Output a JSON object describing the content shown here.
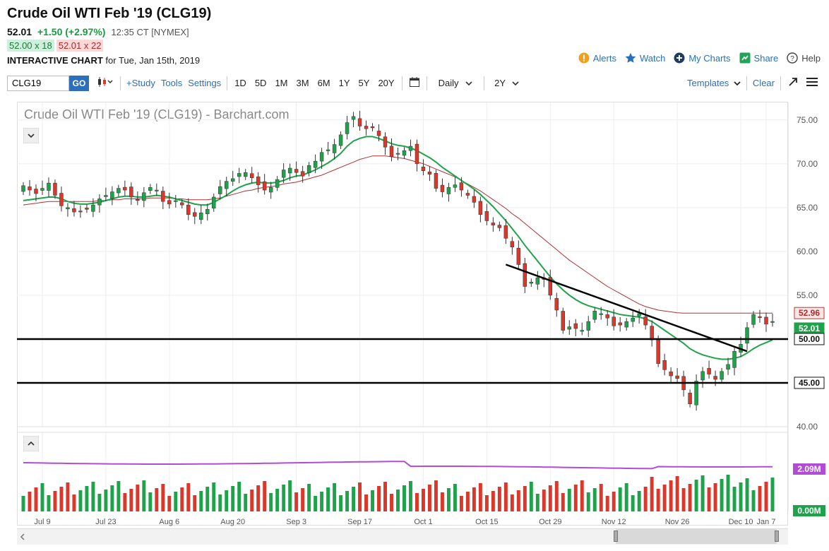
{
  "header": {
    "title": "Crude Oil WTI Feb '19 (CLG19)",
    "last": "52.01",
    "change": "+1.50 (+2.97%)",
    "time": "12:35 CT [NYMEX]",
    "bid": "52.00 x 18",
    "ask": "52.01 x 22",
    "chart_label": "INTERACTIVE CHART",
    "chart_date": "for Tue, Jan 15th, 2019"
  },
  "links": {
    "alerts": "Alerts",
    "watch": "Watch",
    "my_charts": "My Charts",
    "share": "Share",
    "help": "Help"
  },
  "toolbar": {
    "symbol_value": "CLG19",
    "go_label": "GO",
    "study": "+Study",
    "tools": "Tools",
    "settings": "Settings",
    "periods": [
      "1D",
      "5D",
      "1M",
      "3M",
      "6M",
      "1Y",
      "5Y",
      "20Y"
    ],
    "interval": "Daily",
    "range": "2Y",
    "templates": "Templates",
    "clear": "Clear"
  },
  "chart_data": {
    "type": "candlestick",
    "title": "Crude Oil WTI Feb '19 (CLG19) - Barchart.com",
    "ylim": [
      40,
      77
    ],
    "yticks": [
      "75.00",
      "70.00",
      "65.00",
      "60.00",
      "55.00",
      "50.00",
      "45.00",
      "40.00"
    ],
    "xticks": [
      "Jul 9",
      "Jul 23",
      "Aug 6",
      "Aug 20",
      "Sep 3",
      "Sep 17",
      "Oct 1",
      "Oct 15",
      "Oct 29",
      "Nov 12",
      "Nov 26",
      "Dec 10",
      "Jan 7"
    ],
    "price_tags": [
      "52.96",
      "52.01",
      "50.00",
      "45.00"
    ],
    "horizontal_levels": [
      50.0,
      45.0
    ],
    "trendline": {
      "from": [
        "Nov 14",
        58.5
      ],
      "to": [
        "Jan 10",
        48.6
      ]
    },
    "colors": {
      "up": "#1fa34a",
      "down": "#d9382a",
      "ma_fast": "#1fa34a",
      "ma_slow": "#b03030",
      "volume_ma": "#b24bd6"
    },
    "closes": [
      67.5,
      67.0,
      66.6,
      67.2,
      67.8,
      66.4,
      65.2,
      65.0,
      64.5,
      64.6,
      64.8,
      65.3,
      66.0,
      66.4,
      66.8,
      67.2,
      67.0,
      66.2,
      65.8,
      66.7,
      67.3,
      67.0,
      65.7,
      65.4,
      65.8,
      65.3,
      64.2,
      64.0,
      64.4,
      64.8,
      66.2,
      67.4,
      68.0,
      68.3,
      68.9,
      69.0,
      68.4,
      67.6,
      67.0,
      67.3,
      68.2,
      69.3,
      69.5,
      69.0,
      68.6,
      69.8,
      70.3,
      71.3,
      71.6,
      72.2,
      73.3,
      74.7,
      75.4,
      74.3,
      74.0,
      74.1,
      73.2,
      71.9,
      70.8,
      71.2,
      71.5,
      72.0,
      70.0,
      69.2,
      68.8,
      67.2,
      66.8,
      67.3,
      67.6,
      67.0,
      66.4,
      65.6,
      64.2,
      63.5,
      63.0,
      62.7,
      61.5,
      60.5,
      58.5,
      56.0,
      56.5,
      57.0,
      56.8,
      55.0,
      53.3,
      51.0,
      51.4,
      51.2,
      51.0,
      52.0,
      53.2,
      52.9,
      52.4,
      51.5,
      51.6,
      52.0,
      52.4,
      52.9,
      51.6,
      49.9,
      47.2,
      46.5,
      45.8,
      45.5,
      44.2,
      42.6,
      45.2,
      46.3,
      46.0,
      45.4,
      46.3,
      47.1,
      48.6,
      49.4,
      51.3,
      52.8,
      52.5,
      51.7,
      52.01
    ],
    "ma_fast": [
      65.8,
      65.9,
      66.0,
      66.1,
      66.2,
      66.2,
      66.0,
      65.7,
      65.5,
      65.4,
      65.4,
      65.5,
      65.6,
      65.8,
      66.0,
      66.2,
      66.3,
      66.3,
      66.2,
      66.2,
      66.3,
      66.4,
      66.3,
      66.2,
      66.0,
      65.8,
      65.6,
      65.4,
      65.3,
      65.3,
      65.6,
      66.0,
      66.4,
      66.9,
      67.3,
      67.6,
      67.8,
      67.9,
      67.8,
      67.8,
      67.9,
      68.1,
      68.4,
      68.6,
      68.7,
      69.0,
      69.3,
      69.7,
      70.1,
      70.6,
      71.2,
      72.0,
      72.6,
      72.9,
      73.1,
      73.1,
      72.9,
      72.6,
      72.3,
      72.1,
      72.0,
      71.8,
      71.5,
      71.1,
      70.7,
      70.2,
      69.6,
      69.1,
      68.6,
      68.1,
      67.6,
      67.1,
      66.5,
      65.8,
      65.1,
      64.3,
      63.5,
      62.6,
      61.7,
      60.7,
      59.8,
      58.9,
      58.0,
      57.1,
      56.3,
      55.6,
      55.0,
      54.5,
      54.1,
      53.8,
      53.6,
      53.4,
      53.2,
      53.0,
      52.8,
      52.7,
      52.6,
      52.5,
      52.3,
      52.0,
      51.5,
      51.0,
      50.5,
      50.0,
      49.5,
      48.9,
      48.5,
      48.2,
      48.0,
      47.8,
      47.7,
      47.7,
      47.8,
      48.0,
      48.4,
      48.9,
      49.3,
      49.6,
      49.9
    ],
    "ma_slow": [
      65.3,
      65.4,
      65.5,
      65.6,
      65.7,
      65.7,
      65.7,
      65.7,
      65.7,
      65.7,
      65.7,
      65.7,
      65.8,
      65.8,
      65.9,
      65.9,
      66.0,
      66.0,
      66.0,
      66.0,
      66.1,
      66.1,
      66.1,
      66.1,
      66.0,
      66.0,
      65.9,
      65.9,
      65.9,
      65.9,
      66.0,
      66.1,
      66.3,
      66.5,
      66.7,
      66.9,
      67.0,
      67.2,
      67.3,
      67.4,
      67.5,
      67.7,
      67.8,
      67.9,
      68.1,
      68.3,
      68.5,
      68.7,
      69.0,
      69.3,
      69.6,
      69.9,
      70.2,
      70.5,
      70.7,
      70.9,
      70.9,
      70.9,
      70.8,
      70.7,
      70.6,
      70.4,
      70.2,
      70.0,
      69.7,
      69.4,
      69.1,
      68.8,
      68.5,
      68.1,
      67.7,
      67.3,
      66.9,
      66.4,
      65.9,
      65.4,
      64.9,
      64.3,
      63.8,
      63.2,
      62.6,
      62.0,
      61.4,
      60.8,
      60.2,
      59.6,
      59.0,
      58.5,
      58.0,
      57.5,
      57.0,
      56.5,
      56.0,
      55.6,
      55.2,
      54.8,
      54.4,
      54.0,
      53.7,
      53.5,
      53.3,
      53.2,
      53.1,
      53.0,
      52.96,
      52.96,
      52.96,
      52.96,
      52.96,
      52.96,
      52.96,
      52.96,
      52.96,
      52.96,
      52.96,
      52.96,
      52.96,
      52.96,
      52.96
    ],
    "volume_labels": [
      "2.09M",
      "0.00M"
    ]
  }
}
